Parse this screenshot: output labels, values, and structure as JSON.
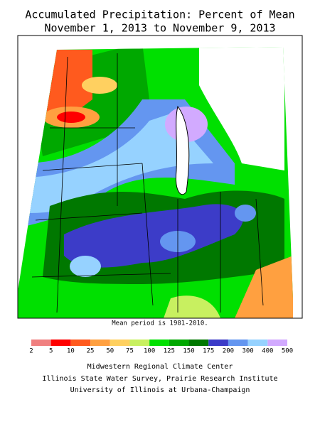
{
  "title": [
    "Accumulated Precipitation: Percent of Mean",
    "November 1, 2013 to November 9, 2013"
  ],
  "note": "Mean period is 1981-2010.",
  "legend": {
    "ticks": [
      2,
      5,
      10,
      25,
      50,
      75,
      100,
      125,
      150,
      175,
      200,
      300,
      400,
      500
    ],
    "colors": [
      "#f08080",
      "#ff0000",
      "#ff5a1e",
      "#ffa040",
      "#ffd060",
      "#c8f060",
      "#00e000",
      "#00a800",
      "#007800",
      "#3c3cc8",
      "#6496f0",
      "#96d2ff",
      "#d2aaff"
    ]
  },
  "credits": [
    "Midwestern Regional Climate Center",
    "Illinois State Water Survey, Prairie Research Institute",
    "University of Illinois at Urbana-Champaign"
  ]
}
